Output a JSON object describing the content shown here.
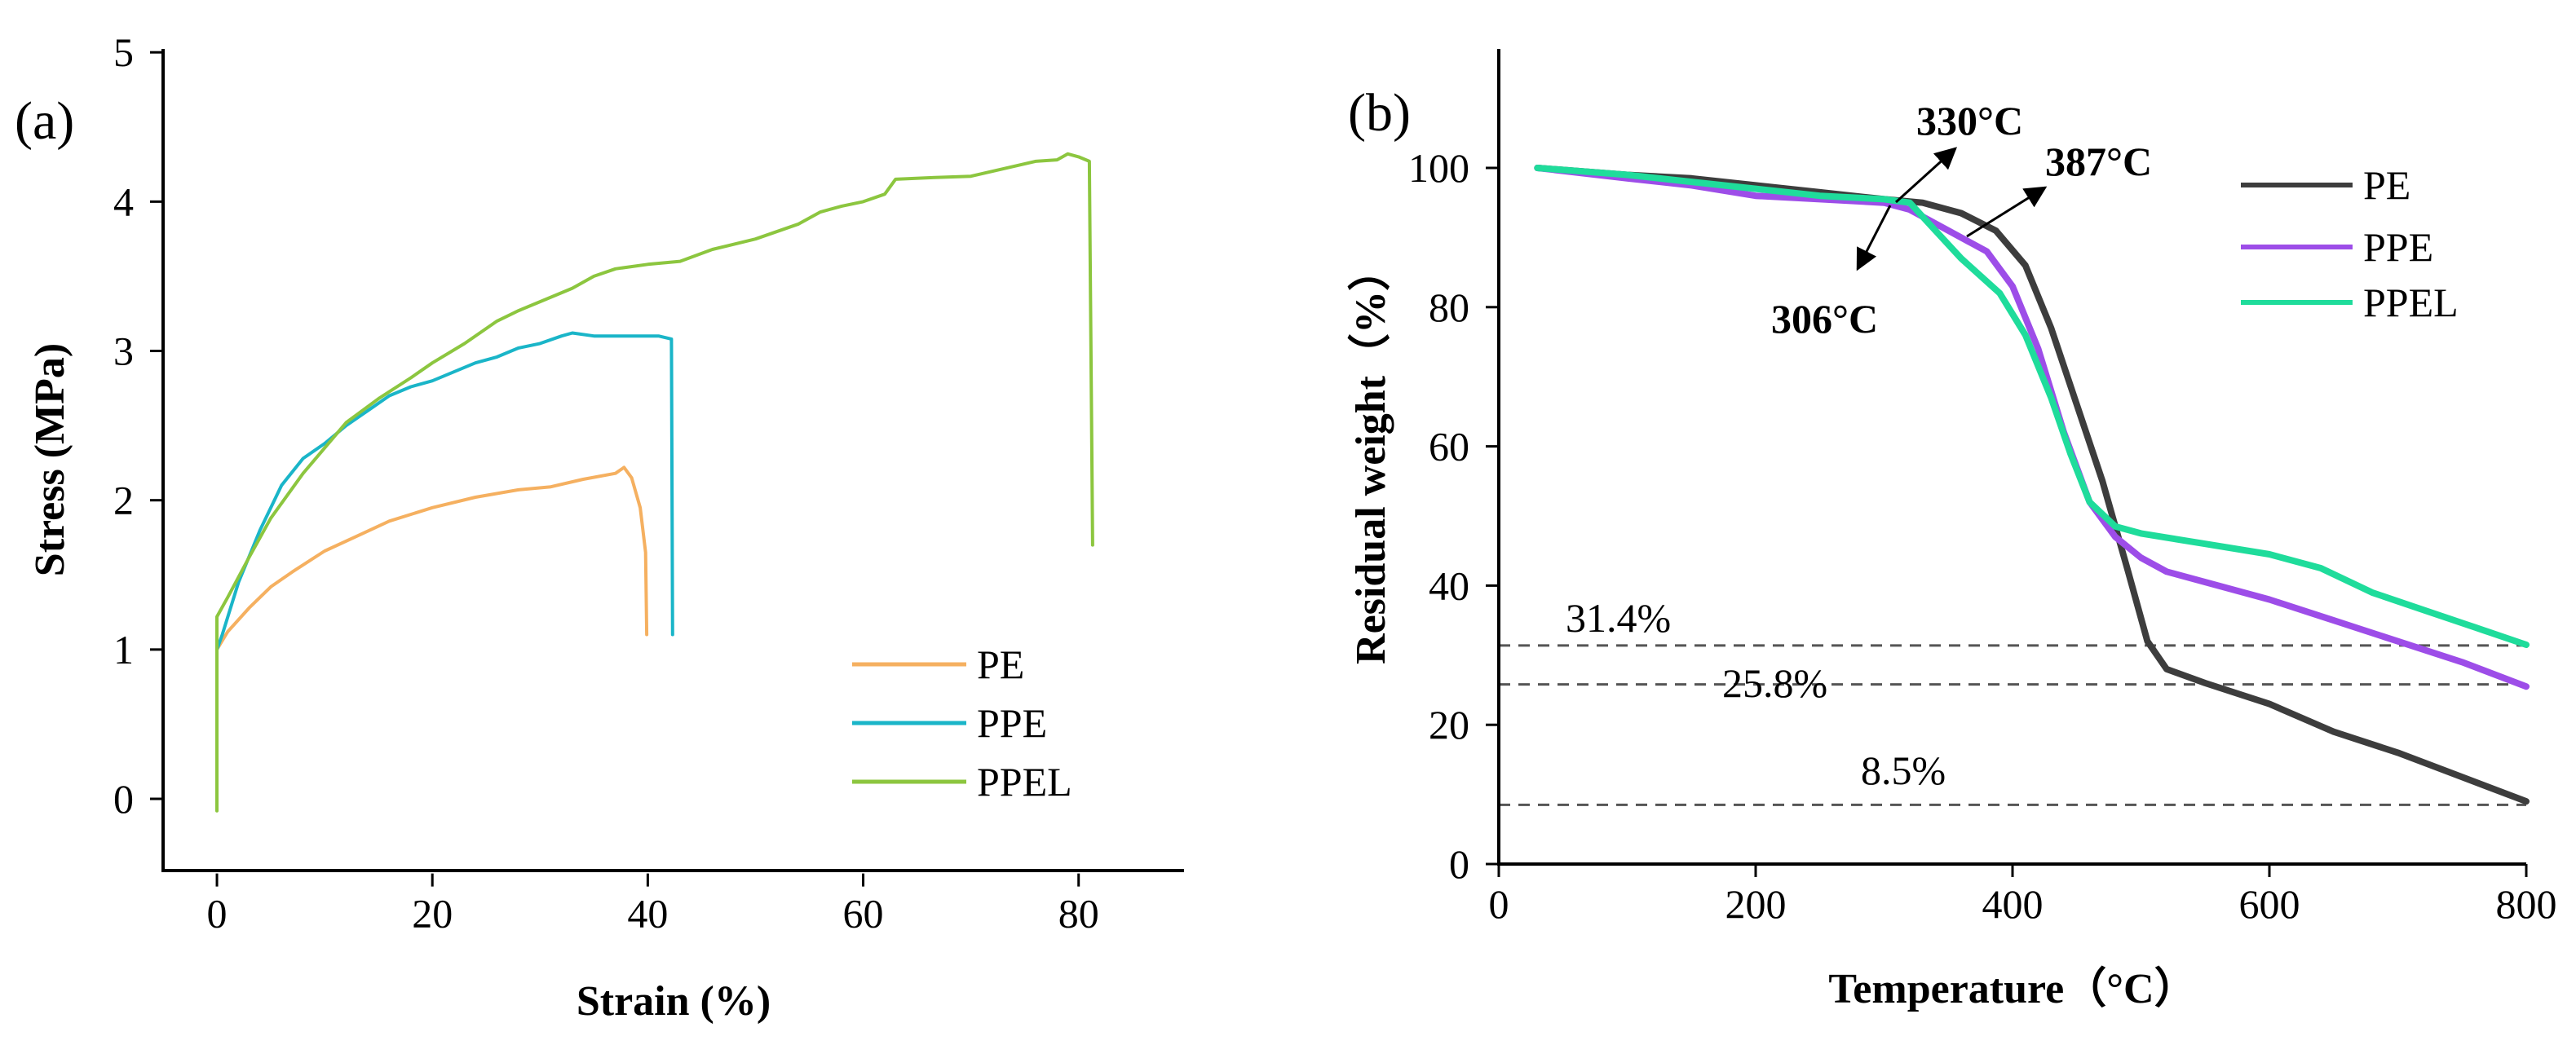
{
  "chart_data": [
    {
      "type": "line",
      "panel_label": "(a)",
      "xlabel": "Strain (%)",
      "ylabel": "Stress (MPa)",
      "xlim": [
        -5,
        90
      ],
      "ylim": [
        -0.5,
        5
      ],
      "xticks": [
        0,
        20,
        40,
        60,
        80
      ],
      "yticks": [
        0,
        1,
        2,
        3,
        4,
        5
      ],
      "grid": false,
      "legend_position": "bottom-right",
      "series": [
        {
          "name": "PE",
          "color": "#f5b060",
          "points": [
            [
              0,
              1.0
            ],
            [
              1,
              1.12
            ],
            [
              3,
              1.28
            ],
            [
              5,
              1.42
            ],
            [
              7,
              1.52
            ],
            [
              10,
              1.66
            ],
            [
              13,
              1.76
            ],
            [
              16,
              1.86
            ],
            [
              20,
              1.95
            ],
            [
              24,
              2.02
            ],
            [
              28,
              2.07
            ],
            [
              31,
              2.09
            ],
            [
              34,
              2.14
            ],
            [
              37,
              2.18
            ],
            [
              37.8,
              2.22
            ],
            [
              38.5,
              2.15
            ],
            [
              39.3,
              1.95
            ],
            [
              39.8,
              1.65
            ],
            [
              39.9,
              1.1
            ]
          ]
        },
        {
          "name": "PPE",
          "color": "#1ab5c8",
          "points": [
            [
              0,
              1.0
            ],
            [
              0.5,
              1.1
            ],
            [
              2,
              1.45
            ],
            [
              4,
              1.8
            ],
            [
              6,
              2.1
            ],
            [
              8,
              2.28
            ],
            [
              10,
              2.38
            ],
            [
              12,
              2.5
            ],
            [
              14,
              2.6
            ],
            [
              16,
              2.7
            ],
            [
              18,
              2.76
            ],
            [
              20,
              2.8
            ],
            [
              22,
              2.86
            ],
            [
              24,
              2.92
            ],
            [
              26,
              2.96
            ],
            [
              28,
              3.02
            ],
            [
              30,
              3.05
            ],
            [
              32,
              3.1
            ],
            [
              33,
              3.12
            ],
            [
              35,
              3.1
            ],
            [
              38,
              3.1
            ],
            [
              41,
              3.1
            ],
            [
              42.2,
              3.08
            ],
            [
              42.3,
              1.1
            ]
          ]
        },
        {
          "name": "PPEL",
          "color": "#8cc63f",
          "points": [
            [
              0,
              -0.08
            ],
            [
              0,
              1.22
            ],
            [
              1,
              1.35
            ],
            [
              3,
              1.62
            ],
            [
              5,
              1.88
            ],
            [
              8,
              2.18
            ],
            [
              10,
              2.35
            ],
            [
              12,
              2.52
            ],
            [
              15,
              2.68
            ],
            [
              18,
              2.82
            ],
            [
              20,
              2.92
            ],
            [
              23,
              3.05
            ],
            [
              26,
              3.2
            ],
            [
              28,
              3.27
            ],
            [
              30,
              3.33
            ],
            [
              33,
              3.42
            ],
            [
              35,
              3.5
            ],
            [
              37,
              3.55
            ],
            [
              40,
              3.58
            ],
            [
              43,
              3.6
            ],
            [
              46,
              3.68
            ],
            [
              50,
              3.75
            ],
            [
              54,
              3.85
            ],
            [
              56,
              3.93
            ],
            [
              58,
              3.97
            ],
            [
              60,
              4.0
            ],
            [
              62,
              4.05
            ],
            [
              63,
              4.15
            ],
            [
              66,
              4.16
            ],
            [
              70,
              4.17
            ],
            [
              73,
              4.22
            ],
            [
              76,
              4.27
            ],
            [
              78,
              4.28
            ],
            [
              79,
              4.32
            ],
            [
              80,
              4.3
            ],
            [
              81,
              4.27
            ],
            [
              81.3,
              1.7
            ]
          ]
        }
      ]
    },
    {
      "type": "line",
      "panel_label": "(b)",
      "xlabel": "Temperature（°C）",
      "ylabel": "Residual weight（%）",
      "xlim": [
        0,
        800
      ],
      "ylim": [
        0,
        120
      ],
      "xticks": [
        0,
        200,
        400,
        600,
        800
      ],
      "yticks": [
        0,
        20,
        40,
        60,
        80,
        100
      ],
      "grid": false,
      "legend_position": "top-right",
      "series": [
        {
          "name": "PE",
          "color": "#3d3d3d",
          "points": [
            [
              30,
              100
            ],
            [
              100,
              99
            ],
            [
              150,
              98.5
            ],
            [
              200,
              97.5
            ],
            [
              250,
              96.5
            ],
            [
              300,
              95.5
            ],
            [
              330,
              95
            ],
            [
              360,
              93.5
            ],
            [
              387,
              91
            ],
            [
              410,
              86
            ],
            [
              430,
              77
            ],
            [
              450,
              66
            ],
            [
              470,
              55
            ],
            [
              490,
              42
            ],
            [
              505,
              32
            ],
            [
              520,
              28
            ],
            [
              550,
              26
            ],
            [
              600,
              23
            ],
            [
              650,
              19
            ],
            [
              700,
              16
            ],
            [
              750,
              12.5
            ],
            [
              800,
              9
            ]
          ]
        },
        {
          "name": "PPE",
          "color": "#9d4de8",
          "points": [
            [
              30,
              100
            ],
            [
              100,
              98.5
            ],
            [
              150,
              97.5
            ],
            [
              200,
              96
            ],
            [
              250,
              95.5
            ],
            [
              300,
              95
            ],
            [
              320,
              94
            ],
            [
              350,
              91
            ],
            [
              380,
              88
            ],
            [
              400,
              83
            ],
            [
              420,
              74
            ],
            [
              440,
              62
            ],
            [
              460,
              52
            ],
            [
              480,
              47
            ],
            [
              500,
              44
            ],
            [
              520,
              42
            ],
            [
              550,
              40.5
            ],
            [
              600,
              38
            ],
            [
              650,
              35
            ],
            [
              700,
              32
            ],
            [
              750,
              29
            ],
            [
              800,
              25.5
            ]
          ]
        },
        {
          "name": "PPEL",
          "color": "#1fdc9b",
          "points": [
            [
              30,
              100
            ],
            [
              100,
              99
            ],
            [
              150,
              98
            ],
            [
              200,
              97
            ],
            [
              250,
              96
            ],
            [
              300,
              95.5
            ],
            [
              320,
              95
            ],
            [
              340,
              91
            ],
            [
              360,
              87
            ],
            [
              390,
              82
            ],
            [
              410,
              76
            ],
            [
              430,
              67
            ],
            [
              445,
              59
            ],
            [
              460,
              52
            ],
            [
              480,
              48.5
            ],
            [
              500,
              47.5
            ],
            [
              550,
              46
            ],
            [
              600,
              44.5
            ],
            [
              640,
              42.5
            ],
            [
              680,
              39
            ],
            [
              720,
              36.5
            ],
            [
              760,
              34
            ],
            [
              800,
              31.5
            ]
          ]
        }
      ],
      "reference_lines": [
        {
          "label": "31.4%",
          "y": 31.4
        },
        {
          "label": "25.8%",
          "y": 25.8
        },
        {
          "label": "8.5%",
          "y": 8.5
        }
      ],
      "annotations": [
        {
          "label": "306°C",
          "x": 306,
          "y": 95
        },
        {
          "label": "330°C",
          "x": 330,
          "y": 95
        },
        {
          "label": "387°C",
          "x": 387,
          "y": 92
        }
      ]
    }
  ]
}
